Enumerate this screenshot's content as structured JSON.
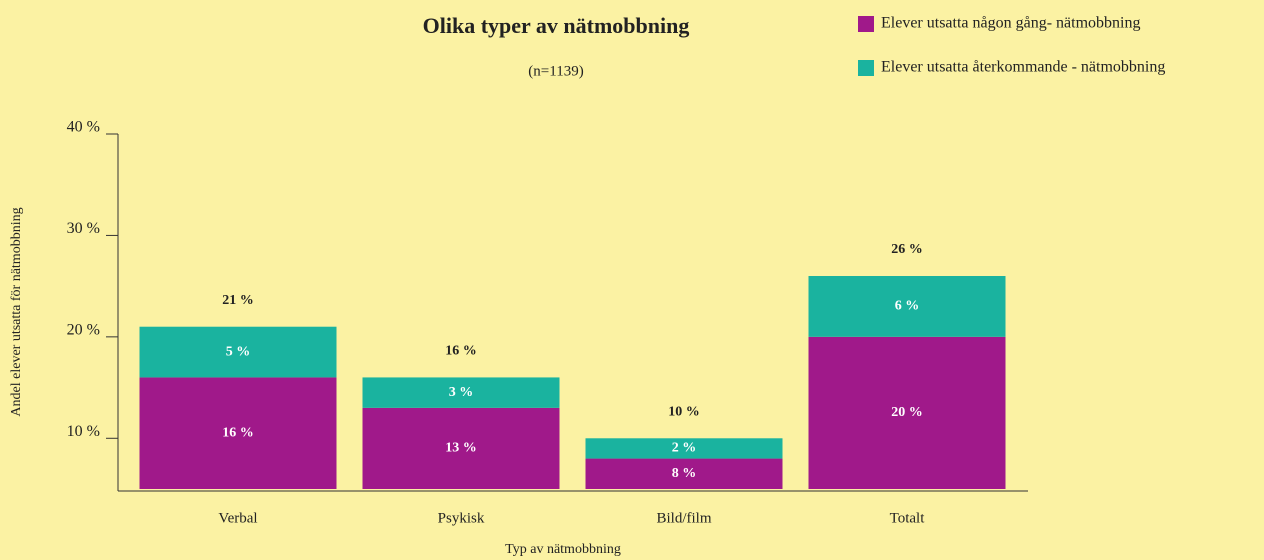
{
  "chart_data": {
    "type": "stacked_bar",
    "title": "Olika typer av nätmobbning",
    "subtitle": "(n=1139)",
    "x_label": "Typ av nätmobbning",
    "y_label": "Andel elever utsatta för nätmobbning",
    "categories": [
      "Verbal",
      "Psykisk",
      "Bild/film",
      "Totalt"
    ],
    "series": [
      {
        "name": "Elever utsatta någon gång- nätmobbning",
        "color": "#a0198a",
        "values": [
          16,
          13,
          8,
          20
        ],
        "value_labels": [
          "16 %",
          "13 %",
          "8 %",
          "20 %"
        ]
      },
      {
        "name": "Elever utsatta återkommande - nätmobbning",
        "color": "#1ab39f",
        "values": [
          5,
          3,
          2,
          6
        ],
        "value_labels": [
          "5 %",
          "3 %",
          "2 %",
          "6 %"
        ]
      }
    ],
    "totals": {
      "values": [
        21,
        16,
        10,
        26
      ],
      "value_labels": [
        "21 %",
        "16 %",
        "10 %",
        "26 %"
      ]
    },
    "ylim": [
      5,
      40
    ],
    "yticks": [
      {
        "value": 10,
        "label": "10 %"
      },
      {
        "value": 20,
        "label": "20 %"
      },
      {
        "value": 30,
        "label": "30 %"
      },
      {
        "value": 40,
        "label": "40 %"
      }
    ],
    "legend": "top-right"
  }
}
